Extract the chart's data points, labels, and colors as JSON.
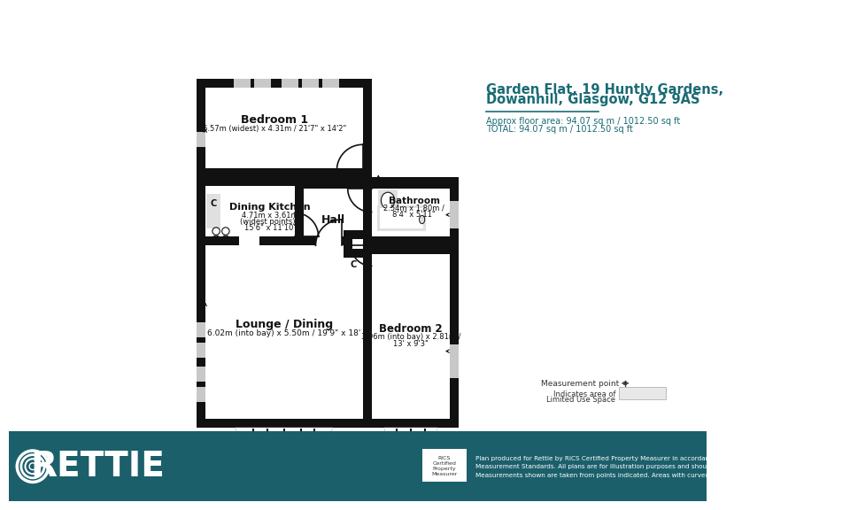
{
  "title_line1": "Garden Flat, 19 Huntly Gardens,",
  "title_line2": "Dowanhill, Glasgow, G12 9AS",
  "subtitle_line1": "Approx floor area: 94.07 sq m / 1012.50 sq ft",
  "subtitle_line2": "TOTAL: 94.07 sq m / 1012.50 sq ft",
  "teal_color": "#1a6b75",
  "footer_bg": "#1b5f6b",
  "wall_color": "#111111",
  "white": "#ffffff",
  "win_gray": "#c8c8c8",
  "fix_gray": "#e0e0e0",
  "legend_gray": "#e8e8e8",
  "rooms": {
    "bedroom1_label": "Bedroom 1",
    "bedroom1_sub": "6.57m (widest) x 4.31m / 21'7\" x 14'2\"",
    "kitchen_label": "Dining Kitchen",
    "kitchen_sub1": "4.71m x 3.61m",
    "kitchen_sub2": "(widest points) /",
    "kitchen_sub3": "15'6\" x 11'10\"",
    "hall_label": "Hall",
    "lounge_label": "Lounge / Dining",
    "lounge_sub": "6.02m (into bay) x 5.50m / 19'9\" x 18'",
    "bath_label": "Bathroom",
    "bath_sub1": "2.54m x 1.80m /",
    "bath_sub2": "8'4\" x 5'11\"",
    "bed2_label": "Bedroom 2",
    "bed2_sub1": "3.96m (into bay) x 2.81m /",
    "bed2_sub2": "13' x 9'3\"",
    "c_label": "C"
  },
  "footer_text": "Plan produced for Rettie by RICS Certified Property Measurer in accordance with RICS International Property\nMeasurement Standards. All plans are for illustration purposes and should not be relied upon as statement of fact.\nMeasurements shown are taken from points indicated. Areas with curved and angled walls are approximated",
  "legend_mp": "Measurement point",
  "legend_lus_line1": "Indicates area of",
  "legend_lus_line2": "Limited Use Space"
}
